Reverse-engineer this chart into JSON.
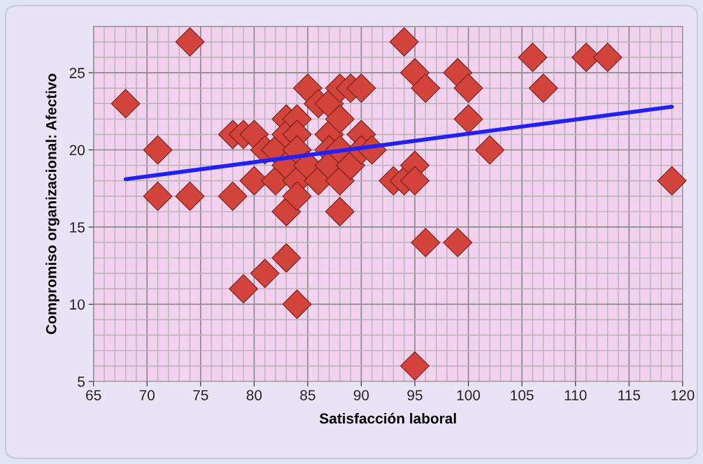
{
  "chart_data": {
    "type": "scatter",
    "xlabel": "Satisfacción laboral",
    "ylabel": "Compromiso organizacional: Afectivo",
    "xlim": [
      65,
      120
    ],
    "xticks": [
      65,
      70,
      75,
      80,
      85,
      90,
      95,
      100,
      105,
      110,
      115,
      120
    ],
    "ylim": [
      5,
      28
    ],
    "yticks": [
      5,
      10,
      15,
      20,
      25
    ],
    "grid": true,
    "marker": "diamond",
    "legend": false,
    "series": [
      {
        "color": "#d2433b",
        "x": [
          68,
          71,
          71,
          74,
          74,
          78,
          78,
          79,
          79,
          80,
          80,
          81,
          81,
          82,
          82,
          83,
          83,
          83,
          83,
          83,
          84,
          84,
          84,
          84,
          84,
          84,
          85,
          85,
          86,
          86,
          87,
          87,
          87,
          87,
          88,
          88,
          88,
          88,
          88,
          89,
          89,
          90,
          90,
          90,
          91,
          93,
          94,
          94,
          95,
          95,
          95,
          95,
          96,
          96,
          99,
          99,
          100,
          100,
          102,
          106,
          107,
          111,
          113,
          119
        ],
        "values": [
          23,
          20,
          17,
          27,
          17,
          21,
          17,
          21,
          11,
          21,
          18,
          20,
          12,
          20,
          18,
          22,
          21,
          19,
          16,
          13,
          22,
          21,
          20,
          18,
          17,
          10,
          24,
          19,
          23,
          18,
          23,
          21,
          20,
          19,
          24,
          22,
          20,
          18,
          16,
          24,
          19,
          24,
          21,
          20,
          20,
          18,
          27,
          18,
          25,
          19,
          18,
          6,
          24,
          14,
          25,
          14,
          24,
          22,
          20,
          26,
          24,
          26,
          26,
          18
        ]
      },
      {
        "type": "line",
        "color": "#1f1fff",
        "marker": "none",
        "x": [
          68,
          119
        ],
        "values": [
          18.1,
          22.8
        ]
      }
    ]
  }
}
